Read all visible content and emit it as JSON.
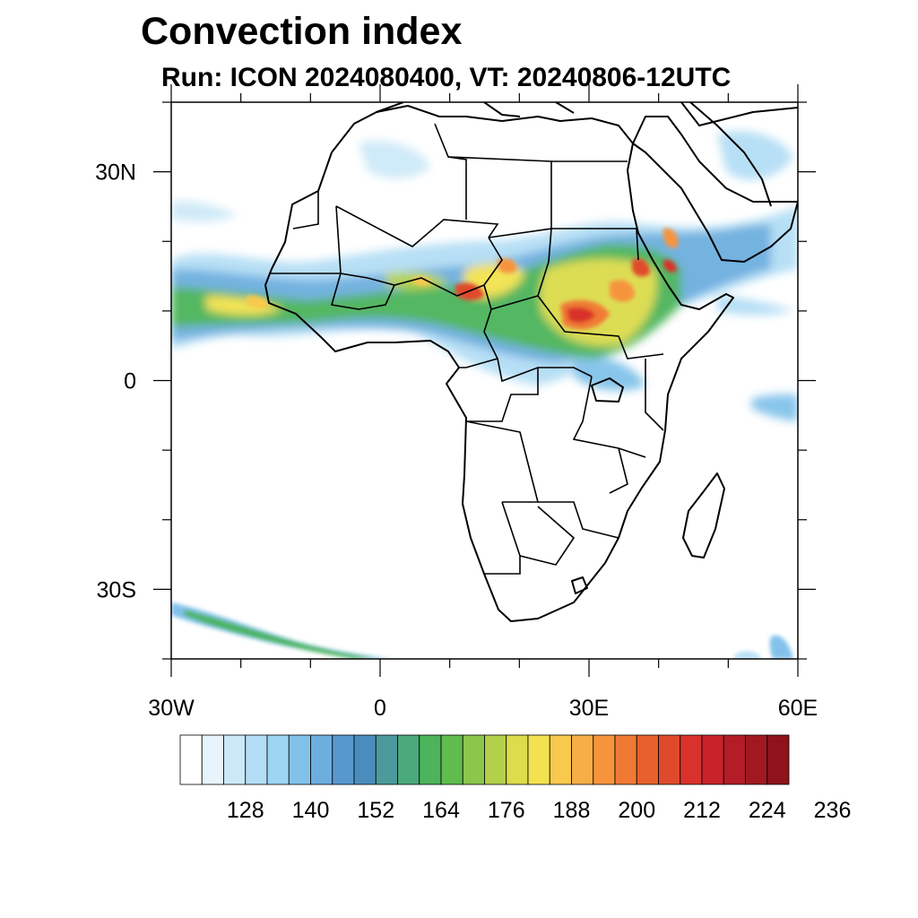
{
  "header": {
    "title": "Convection index",
    "subtitle": "Run: ICON 2024080400,  VT: 20240806-12UTC"
  },
  "map": {
    "lon_range": [
      -30,
      60
    ],
    "lat_range": [
      -40,
      40
    ],
    "x_ticks": [
      {
        "lon": -30,
        "label": "30W"
      },
      {
        "lon": 0,
        "label": "0"
      },
      {
        "lon": 30,
        "label": "30E"
      },
      {
        "lon": 60,
        "label": "60E"
      }
    ],
    "y_ticks": [
      {
        "lat": 30,
        "label": "30N"
      },
      {
        "lat": 0,
        "label": "0"
      },
      {
        "lat": -30,
        "label": "30S"
      }
    ],
    "minor_lon_step": 10,
    "minor_lat_step": 10
  },
  "colorbar": {
    "colors": [
      "#ffffff",
      "#e8f4fc",
      "#cde9f8",
      "#b4def5",
      "#9dd5f3",
      "#82c2ea",
      "#6daedf",
      "#5799cf",
      "#4a8dbd",
      "#4c9a9b",
      "#4aa97a",
      "#4cb45a",
      "#5fbc4d",
      "#8cc64b",
      "#b3d04b",
      "#dcdc4c",
      "#f2e24f",
      "#f8c94c",
      "#f7ae45",
      "#f6943c",
      "#f07a34",
      "#e8602d",
      "#e04a2c",
      "#d9322c",
      "#c8232b",
      "#b41c26",
      "#a11820",
      "#8e131b"
    ],
    "labels": [
      "128",
      "140",
      "152",
      "164",
      "176",
      "188",
      "200",
      "212",
      "224",
      "236"
    ]
  }
}
